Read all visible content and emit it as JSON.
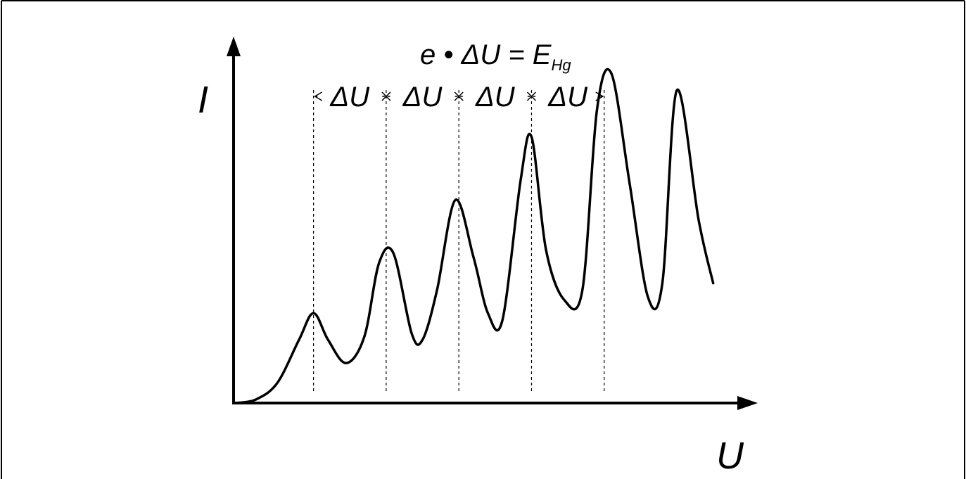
{
  "chart_data": {
    "type": "line",
    "title": "",
    "xlabel": "U",
    "ylabel": "I",
    "equation": {
      "lhs": "e • ΔU = E",
      "subscript": "Hg"
    },
    "spacing_label": "ΔU",
    "spacing_count": 4,
    "grid": false,
    "legend": "none",
    "xlim": [
      0,
      7
    ],
    "ylim": [
      0,
      1.0
    ],
    "series": [
      {
        "name": "",
        "x": [
          0,
          0.3,
          0.6,
          0.9,
          1.1,
          1.3,
          1.55,
          1.8,
          2.0,
          2.2,
          2.45,
          2.6,
          2.8,
          3.05,
          3.3,
          3.5,
          3.7,
          3.95,
          4.1,
          4.3,
          4.55,
          4.8,
          5.0,
          5.2,
          5.45,
          5.7,
          5.9,
          6.1,
          6.4,
          6.6
        ],
        "y": [
          0,
          0.01,
          0.06,
          0.19,
          0.27,
          0.19,
          0.12,
          0.2,
          0.42,
          0.45,
          0.21,
          0.19,
          0.34,
          0.61,
          0.44,
          0.27,
          0.25,
          0.67,
          0.8,
          0.46,
          0.31,
          0.34,
          0.88,
          0.99,
          0.66,
          0.32,
          0.36,
          0.94,
          0.55,
          0.36
        ]
      }
    ],
    "markers_x": [
      1.1,
      2.1,
      3.1,
      4.1,
      5.1
    ]
  }
}
